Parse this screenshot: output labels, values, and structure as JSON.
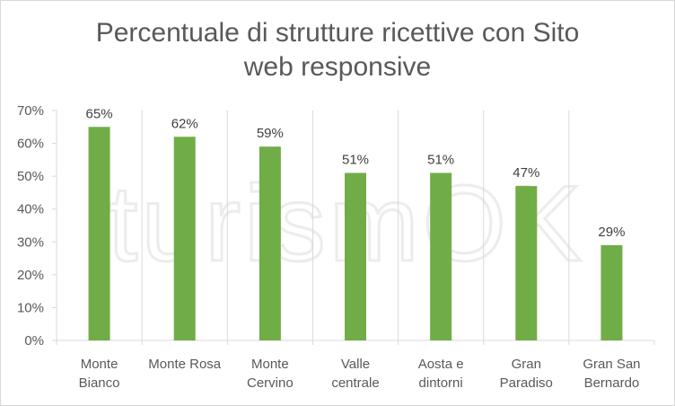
{
  "chart_data": {
    "type": "bar",
    "title_lines": [
      "Percentuale di strutture ricettive con Sito",
      "web responsive"
    ],
    "categories": [
      [
        "Monte",
        "Bianco"
      ],
      [
        "Monte Rosa"
      ],
      [
        "Monte",
        "Cervino"
      ],
      [
        "Valle",
        "centrale"
      ],
      [
        "Aosta e",
        "dintorni"
      ],
      [
        "Gran",
        "Paradiso"
      ],
      [
        "Gran San",
        "Bernardo"
      ]
    ],
    "values": [
      65,
      62,
      59,
      51,
      51,
      47,
      29
    ],
    "data_labels": [
      "65%",
      "62%",
      "59%",
      "51%",
      "51%",
      "47%",
      "29%"
    ],
    "y_ticks": [
      0,
      10,
      20,
      30,
      40,
      50,
      60,
      70
    ],
    "y_tick_labels": [
      "0%",
      "10%",
      "20%",
      "30%",
      "40%",
      "50%",
      "60%",
      "70%"
    ],
    "ylim": [
      0,
      70
    ],
    "grid": "vertical category separators",
    "legend": "none",
    "bar_color": "#70ad47",
    "watermark": "turismOK"
  }
}
